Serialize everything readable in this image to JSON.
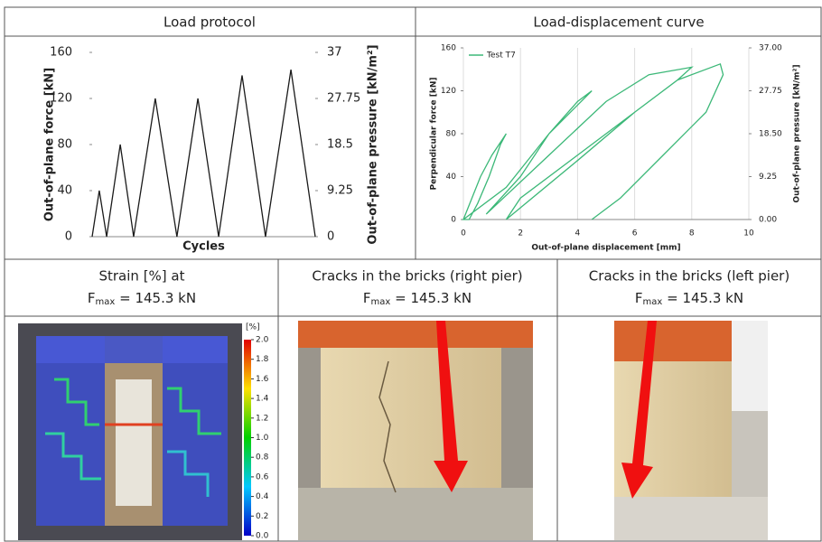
{
  "headers": {
    "load_protocol": "Load protocol",
    "curve": "Load-displacement curve",
    "strain": {
      "line1": "Strain [%] at",
      "f": "F",
      "sub": "max",
      "rest": " = 145.3 kN"
    },
    "right_pier": {
      "line1": "Cracks in the bricks (right pier)",
      "f": "F",
      "sub": "max",
      "rest": " = 145.3 kN"
    },
    "left_pier": {
      "line1": "Cracks in the bricks (left pier)",
      "f": "F",
      "sub": "max",
      "rest": " = 145.3 kN"
    }
  },
  "colorbar": {
    "title": "[%]",
    "ticks": [
      {
        "value": 0,
        "label": "0.0"
      },
      {
        "value": 0.2,
        "label": "0.2"
      },
      {
        "value": 0.4,
        "label": "0.4"
      },
      {
        "value": 0.6,
        "label": "0.6"
      },
      {
        "value": 0.8,
        "label": "0.8"
      },
      {
        "value": 1,
        "label": "1.0"
      },
      {
        "value": 1.2,
        "label": "1.2"
      },
      {
        "value": 1.4,
        "label": "1.4"
      },
      {
        "value": 1.6,
        "label": "1.6"
      },
      {
        "value": 1.8,
        "label": "1.8"
      },
      {
        "value": 2,
        "label": "2.0"
      }
    ],
    "lim": [
      0,
      2
    ]
  },
  "chart_data": [
    {
      "type": "line",
      "xlabel": "Cycles",
      "ylabel": "Out-of-plane force [kN]",
      "y2label": "Out-of-plane pressure [kN/m²]",
      "x": [
        0,
        3.2,
        6.5,
        12.6,
        18.6,
        28.3,
        38,
        47.4,
        56.7,
        67.2,
        77.7,
        89.1,
        100
      ],
      "values": [
        0,
        40,
        0,
        80,
        0,
        120,
        0,
        120,
        0,
        140,
        0,
        145,
        0
      ],
      "color": "#1a1a1a",
      "xlim": [
        0,
        100
      ],
      "ylim": [
        0,
        160
      ],
      "yticks": [
        0,
        40,
        80,
        120,
        160
      ],
      "y2lim": [
        0,
        37
      ],
      "y2ticks": [
        0,
        9.25,
        18.5,
        27.75,
        37
      ],
      "grid": false
    },
    {
      "type": "line",
      "xlabel": "Out-of-plane displacement [mm]",
      "ylabel": "Perpendicular force [kN]",
      "y2label": "Out-of-plane pressure [kN/m²]",
      "series": [
        {
          "name": "Test T7",
          "color": "#3cb878",
          "x": [
            0,
            0.3,
            0.6,
            1,
            1.5,
            1.3,
            0.9,
            0.5,
            0.2,
            0,
            1.5,
            3,
            4.5,
            4,
            3,
            2,
            0.8,
            3,
            5,
            6.5,
            8,
            7.5,
            6,
            4,
            2,
            1.5,
            4,
            6,
            7.5,
            9,
            9.1,
            8.5,
            7,
            5.5,
            4.5
          ],
          "values": [
            0,
            20,
            40,
            60,
            80,
            70,
            40,
            15,
            0,
            0,
            30,
            80,
            120,
            110,
            80,
            40,
            5,
            60,
            110,
            135,
            142,
            130,
            100,
            60,
            20,
            0,
            55,
            100,
            130,
            145,
            135,
            100,
            60,
            20,
            0
          ]
        }
      ],
      "xlim": [
        0,
        10
      ],
      "xticks": [
        0,
        2,
        4,
        6,
        8,
        10
      ],
      "ylim": [
        0,
        160
      ],
      "yticks": [
        0,
        40,
        80,
        120,
        160
      ],
      "y2lim": [
        0,
        37
      ],
      "y2ticks": [
        {
          "value": 0,
          "label": "0.00"
        },
        {
          "value": 9.25,
          "label": "9.25"
        },
        {
          "value": 18.5,
          "label": "18.50"
        },
        {
          "value": 27.75,
          "label": "27.75"
        },
        {
          "value": 37,
          "label": "37.00"
        }
      ],
      "grid": true,
      "legend": "upper left"
    }
  ]
}
